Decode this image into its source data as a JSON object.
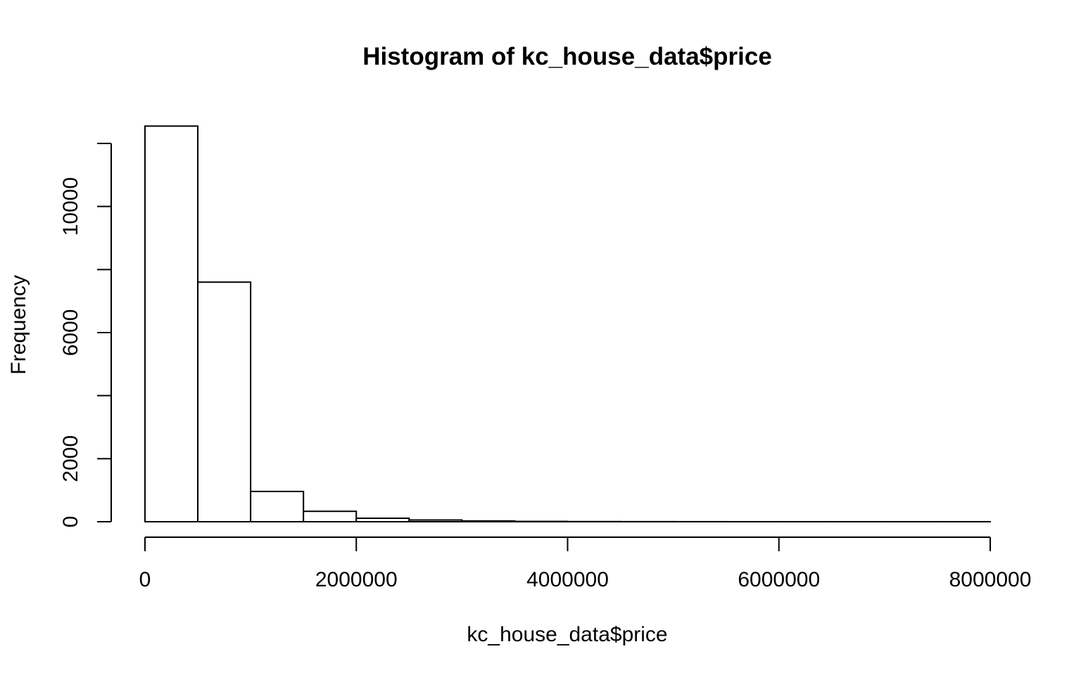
{
  "chart_data": {
    "type": "bar",
    "title": "Histogram of kc_house_data$price",
    "xlabel": "kc_house_data$price",
    "ylabel": "Frequency",
    "bin_width": 500000,
    "bins": [
      {
        "x0": 0,
        "x1": 500000,
        "count": 12550
      },
      {
        "x0": 500000,
        "x1": 1000000,
        "count": 7600
      },
      {
        "x0": 1000000,
        "x1": 1500000,
        "count": 960
      },
      {
        "x0": 1500000,
        "x1": 2000000,
        "count": 330
      },
      {
        "x0": 2000000,
        "x1": 2500000,
        "count": 110
      },
      {
        "x0": 2500000,
        "x1": 3000000,
        "count": 55
      },
      {
        "x0": 3000000,
        "x1": 3500000,
        "count": 25
      },
      {
        "x0": 3500000,
        "x1": 4000000,
        "count": 10
      },
      {
        "x0": 4000000,
        "x1": 4500000,
        "count": 5
      },
      {
        "x0": 4500000,
        "x1": 5000000,
        "count": 3
      },
      {
        "x0": 5000000,
        "x1": 5500000,
        "count": 2
      },
      {
        "x0": 5500000,
        "x1": 6000000,
        "count": 1
      },
      {
        "x0": 6000000,
        "x1": 6500000,
        "count": 1
      },
      {
        "x0": 6500000,
        "x1": 7000000,
        "count": 1
      },
      {
        "x0": 7000000,
        "x1": 7500000,
        "count": 1
      },
      {
        "x0": 7500000,
        "x1": 8000000,
        "count": 1
      }
    ],
    "x_ticks": [
      0,
      2000000,
      4000000,
      6000000,
      8000000
    ],
    "x_tick_labels": [
      "0",
      "2000000",
      "4000000",
      "6000000",
      "8000000"
    ],
    "y_ticks": [
      0,
      2000,
      4000,
      6000,
      8000,
      10000,
      12000
    ],
    "y_tick_labels": [
      "0",
      "2000",
      "",
      "6000",
      "",
      "10000",
      ""
    ],
    "xlim": [
      0,
      8000000
    ],
    "ylim": [
      0,
      12000
    ],
    "grid": false,
    "legend": "none"
  }
}
